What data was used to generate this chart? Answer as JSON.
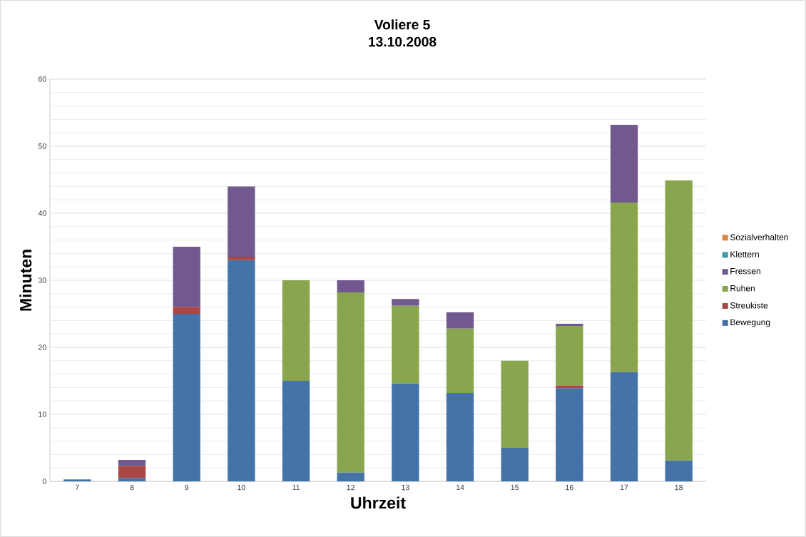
{
  "chart_data": {
    "type": "bar",
    "stacked": true,
    "title": "Voliere 5",
    "subtitle": "13.10.2008",
    "xlabel": "Uhrzeit",
    "ylabel": "Minuten",
    "categories": [
      "7",
      "8",
      "9",
      "10",
      "11",
      "12",
      "13",
      "14",
      "15",
      "16",
      "17",
      "18"
    ],
    "series": [
      {
        "name": "Bewegung",
        "color": "#4572a7",
        "values": [
          0.3,
          0.5,
          25,
          33,
          15,
          1.3,
          14.6,
          13.2,
          5,
          13.9,
          16.3,
          3.1
        ]
      },
      {
        "name": "Streukiste",
        "color": "#aa4643",
        "values": [
          0,
          1.8,
          1,
          0.5,
          0,
          0,
          0,
          0,
          0,
          0.4,
          0,
          0
        ]
      },
      {
        "name": "Ruhen",
        "color": "#89a54e",
        "values": [
          0,
          0,
          0,
          0,
          15,
          26.9,
          11.6,
          9.6,
          13,
          8.9,
          25.3,
          41.8
        ]
      },
      {
        "name": "Fressen",
        "color": "#71588f",
        "values": [
          0,
          0.9,
          9,
          10.5,
          0,
          1.8,
          1,
          2.4,
          0,
          0.3,
          11.6,
          0
        ]
      },
      {
        "name": "Klettern",
        "color": "#4198af",
        "values": [
          0,
          0,
          0,
          0,
          0,
          0,
          0,
          0,
          0,
          0,
          0,
          0
        ]
      },
      {
        "name": "Sozialverhalten",
        "color": "#db843d",
        "values": [
          0,
          0,
          0,
          0,
          0,
          0,
          0,
          0,
          0,
          0,
          0,
          0
        ]
      }
    ],
    "ylim": [
      0,
      60
    ],
    "yticks": [
      0,
      10,
      20,
      30,
      40,
      50,
      60
    ],
    "grid": "y",
    "legend": "right"
  }
}
